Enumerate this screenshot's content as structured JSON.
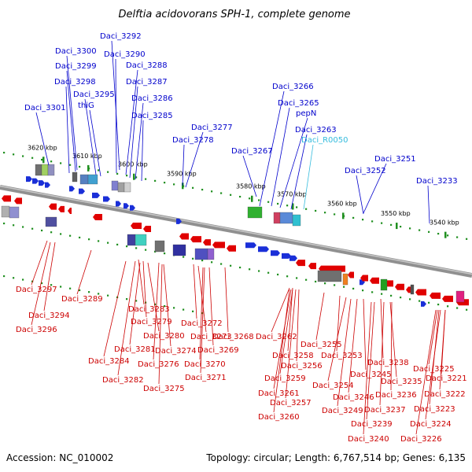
{
  "title": "Delftia acidovorans SPH-1, complete genome",
  "footer": {
    "accession": "Accession: NC_010002",
    "summary": "Topology: circular; Length: 6,767,514 bp; Genes: 6,135"
  },
  "colors": {
    "forward_label": "#0000cc",
    "reverse_label": "#cc0000",
    "rna_label": "#33bbdd",
    "backbone": "#888888",
    "ticks": "#22aa22"
  },
  "scale_ticks": [
    "3620 kbp",
    "3610 kbp",
    "3600 kbp",
    "3590 kbp",
    "3580 kbp",
    "3570 kbp",
    "3560 kbp",
    "3550 kbp",
    "3540 kbp"
  ],
  "forward_labels": [
    "Daci_3292",
    "Daci_3300",
    "Daci_3290",
    "Daci_3299",
    "Daci_3288",
    "Daci_3298",
    "Daci_3287",
    "Daci_3295",
    "thiG",
    "Daci_3286",
    "Daci_3301",
    "Daci_3285",
    "Daci_3266",
    "Daci_3265",
    "pepN",
    "Daci_3263",
    "Daci_R0050",
    "Daci_3277",
    "Daci_3278",
    "Daci_3267",
    "Daci_3251",
    "Daci_3252",
    "Daci_3233"
  ],
  "reverse_labels": [
    "Daci_3297",
    "Daci_3289",
    "Daci_3294",
    "Daci_3296",
    "Daci_3283",
    "Daci_3279",
    "Daci_3280",
    "Daci_3281",
    "Daci_3284",
    "Daci_3282",
    "Daci_3276",
    "Daci_3274",
    "Daci_3275",
    "Daci_3272",
    "Daci_3273",
    "Daci_3269",
    "Daci_3270",
    "Daci_3271",
    "Daci_3268",
    "Daci_3262",
    "Daci_3258",
    "Daci_3256",
    "Daci_3259",
    "Daci_3261",
    "Daci_3257",
    "Daci_3260",
    "Daci_3255",
    "Daci_3253",
    "Daci_3254",
    "Daci_3245",
    "Daci_3246",
    "Daci_3249",
    "Daci_3238",
    "Daci_3235",
    "Daci_3236",
    "Daci_3237",
    "Daci_3239",
    "Daci_3240",
    "Daci_3225",
    "Daci_3221",
    "Daci_3222",
    "Daci_3223",
    "Daci_3224",
    "Daci_3226"
  ]
}
